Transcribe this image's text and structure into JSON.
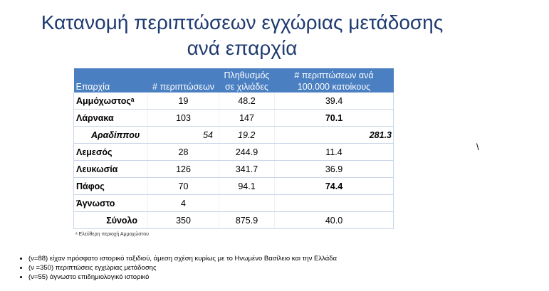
{
  "title": {
    "line1": "Κατανομή περιπτώσεων εγχώριας μετάδοσης",
    "line2": "ανά επαρχία"
  },
  "table": {
    "headers": [
      "Επαρχία",
      "# περιπτώσεων",
      "Πληθυσμός σε χιλιάδες",
      "# περιπτώσεων ανά 100.000 κατοίκους"
    ],
    "rows": [
      {
        "name": "Αμμόχωστοςᵃ",
        "cases": "19",
        "pop": "48.2",
        "rate": "39.4"
      },
      {
        "name": "Λάρνακα",
        "cases": "103",
        "pop": "147",
        "rate": "70.1"
      },
      {
        "name": "Αραδίππου",
        "cases": "54",
        "pop": "19.2",
        "rate": "281.3"
      },
      {
        "name": "Λεμεσός",
        "cases": "28",
        "pop": "244.9",
        "rate": "11.4"
      },
      {
        "name": "Λευκωσία",
        "cases": "126",
        "pop": "341.7",
        "rate": "36.9"
      },
      {
        "name": "Πάφος",
        "cases": "70",
        "pop": "94.1",
        "rate": "74.4"
      },
      {
        "name": "Άγνωστο",
        "cases": "4",
        "pop": "",
        "rate": ""
      },
      {
        "name": "Σύνολο",
        "cases": "350",
        "pop": "875.9",
        "rate": "40.0"
      }
    ]
  },
  "footnote": "ᵃ Ελεύθερη περιοχή Αμμοχώστου",
  "stray_mark": "\\",
  "bullets": [
    "(ν=88) είχαν πρόσφατο ιστορικό ταξιδιού, άμεση σχέση κυρίως με το Ηνωμένο Βασίλειο και την Ελλάδα",
    "(ν =350) περιπτώσεις εγχώριας μετάδοσης",
    "(ν=55) άγνωστο επιδημιολογικό ιστορικό"
  ]
}
